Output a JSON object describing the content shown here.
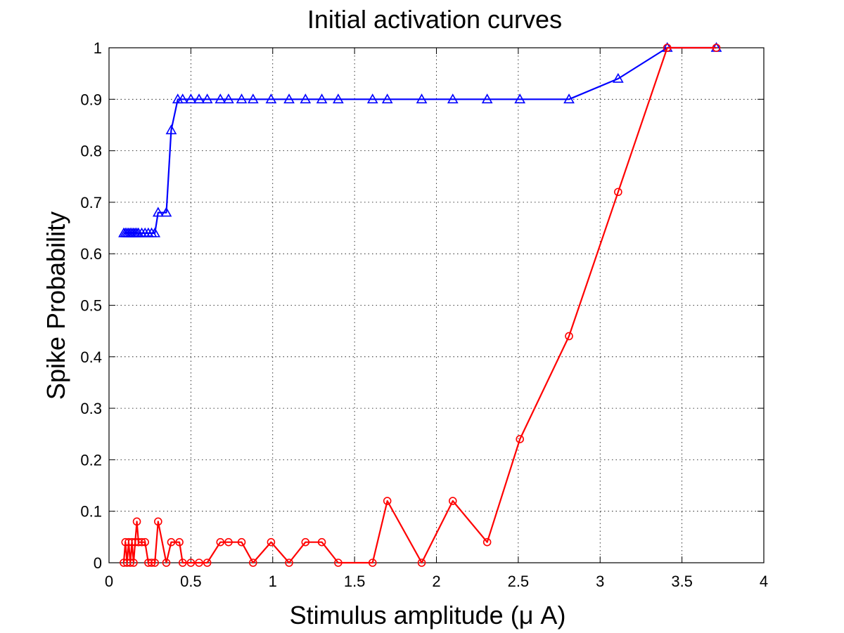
{
  "chart_data": {
    "type": "line",
    "title": "Initial activation curves",
    "xlabel": "Stimulus amplitude (μ A)",
    "ylabel": "Spike Probability",
    "xlim": [
      0,
      4
    ],
    "ylim": [
      0,
      1
    ],
    "xticks": [
      "0",
      "0.5",
      "1",
      "1.5",
      "2",
      "2.5",
      "3",
      "3.5",
      "4"
    ],
    "yticks": [
      "0",
      "0.1",
      "0.2",
      "0.3",
      "0.4",
      "0.5",
      "0.6",
      "0.7",
      "0.8",
      "0.9",
      "1"
    ],
    "grid": true,
    "series": [
      {
        "color": "#0000ff",
        "marker": "triangle",
        "x": [
          0.09,
          0.1,
          0.11,
          0.12,
          0.13,
          0.14,
          0.15,
          0.16,
          0.17,
          0.18,
          0.2,
          0.22,
          0.24,
          0.26,
          0.28,
          0.3,
          0.35,
          0.38,
          0.42,
          0.45,
          0.5,
          0.55,
          0.6,
          0.68,
          0.73,
          0.81,
          0.88,
          0.99,
          1.1,
          1.2,
          1.3,
          1.4,
          1.61,
          1.7,
          1.91,
          2.1,
          2.31,
          2.51,
          2.81,
          3.11,
          3.41,
          3.71
        ],
        "y": [
          0.64,
          0.64,
          0.64,
          0.64,
          0.64,
          0.64,
          0.64,
          0.64,
          0.64,
          0.64,
          0.64,
          0.64,
          0.64,
          0.64,
          0.64,
          0.68,
          0.68,
          0.84,
          0.9,
          0.9,
          0.9,
          0.9,
          0.9,
          0.9,
          0.9,
          0.9,
          0.9,
          0.9,
          0.9,
          0.9,
          0.9,
          0.9,
          0.9,
          0.9,
          0.9,
          0.9,
          0.9,
          0.9,
          0.9,
          0.94,
          1.0,
          1.0
        ]
      },
      {
        "color": "#ff0000",
        "marker": "circle",
        "x": [
          0.09,
          0.1,
          0.11,
          0.12,
          0.13,
          0.14,
          0.15,
          0.16,
          0.17,
          0.18,
          0.2,
          0.22,
          0.24,
          0.26,
          0.28,
          0.3,
          0.35,
          0.38,
          0.43,
          0.45,
          0.5,
          0.55,
          0.6,
          0.68,
          0.73,
          0.81,
          0.88,
          0.99,
          1.1,
          1.2,
          1.3,
          1.4,
          1.61,
          1.7,
          1.91,
          2.1,
          2.31,
          2.51,
          2.81,
          3.11,
          3.41,
          3.71
        ],
        "y": [
          0.0,
          0.04,
          0.0,
          0.04,
          0.0,
          0.04,
          0.0,
          0.04,
          0.08,
          0.04,
          0.04,
          0.04,
          0.0,
          0.0,
          0.0,
          0.08,
          0.0,
          0.04,
          0.04,
          0.0,
          0.0,
          0.0,
          0.0,
          0.04,
          0.04,
          0.04,
          0.0,
          0.04,
          0.0,
          0.04,
          0.04,
          0.0,
          0.0,
          0.12,
          0.0,
          0.12,
          0.04,
          0.24,
          0.44,
          0.72,
          1.0,
          1.0
        ]
      }
    ]
  }
}
